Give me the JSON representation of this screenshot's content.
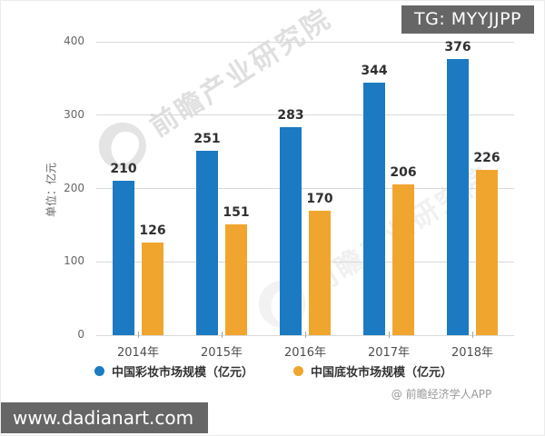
{
  "header": {
    "tg_badge": "TG: MYYJJPP"
  },
  "watermark": {
    "text": "前瞻产业研究院",
    "logo": "qianzhan-logo"
  },
  "chart_data": {
    "type": "bar",
    "title": "",
    "unit_label": "单位：亿元",
    "categories": [
      "2014年",
      "2015年",
      "2016年",
      "2017年",
      "2018年"
    ],
    "series": [
      {
        "name": "中国彩妆市场规模（亿元）",
        "color": "#1b7ac2",
        "values": [
          210,
          251,
          283,
          344,
          376
        ]
      },
      {
        "name": "中国底妆市场规模（亿元）",
        "color": "#f0a62e",
        "values": [
          126,
          151,
          170,
          206,
          226
        ]
      }
    ],
    "ylim": [
      0,
      400
    ],
    "yticks": [
      0,
      100,
      200,
      300,
      400
    ],
    "grid": true,
    "legend_position": "bottom"
  },
  "footer": {
    "source": "@ 前瞻经济学人APP",
    "site": "www.dadianart.com"
  },
  "colors": {
    "badge_bg": "#666666",
    "grid": "#d9d9d9",
    "tick_label": "#666666",
    "value_label": "#303030"
  }
}
